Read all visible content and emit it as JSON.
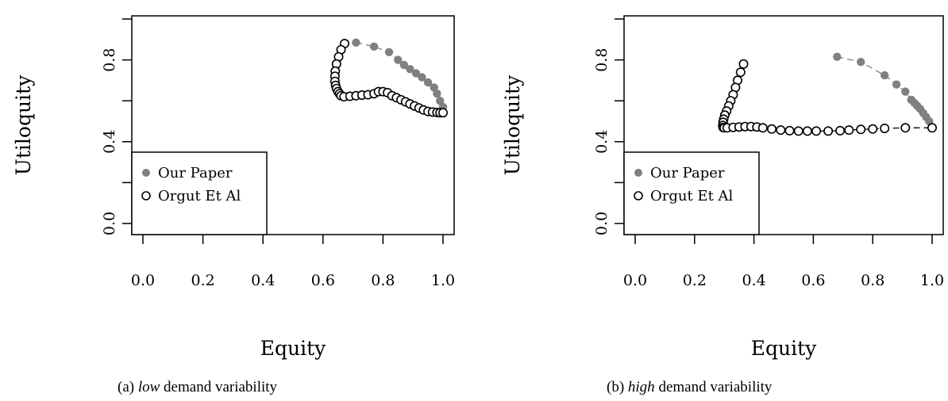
{
  "chart_data": [
    {
      "type": "scatter",
      "xlabel": "Equity",
      "ylabel": "Utiloquity",
      "xlim": [
        0,
        1
      ],
      "ylim": [
        0,
        1
      ],
      "x_ticks": [
        "0.0",
        "0.2",
        "0.4",
        "0.6",
        "0.8",
        "1.0"
      ],
      "y_ticks": [
        "0.0",
        "0.4",
        "0.8"
      ],
      "legend_placement": "bottom-left",
      "caption": {
        "prefix": "(a) ",
        "emphasis": "low",
        "suffix": " demand variability"
      },
      "series": [
        {
          "name": "Our Paper",
          "marker": "filled-circle",
          "color": "#808080",
          "connector": "dashed",
          "x": [
            0.71,
            0.77,
            0.82,
            0.85,
            0.87,
            0.89,
            0.91,
            0.93,
            0.95,
            0.97,
            0.98,
            0.99,
            1.0
          ],
          "y": [
            0.885,
            0.865,
            0.838,
            0.8,
            0.775,
            0.755,
            0.735,
            0.715,
            0.69,
            0.665,
            0.635,
            0.6,
            0.57
          ]
        },
        {
          "name": "Orgut Et Al",
          "marker": "open-circle",
          "color": "#000000",
          "connector": "dashed",
          "x": [
            0.672,
            0.66,
            0.652,
            0.645,
            0.641,
            0.64,
            0.64,
            0.642,
            0.645,
            0.65,
            0.655,
            0.66,
            0.67,
            0.69,
            0.71,
            0.73,
            0.75,
            0.77,
            0.785,
            0.8,
            0.815,
            0.83,
            0.845,
            0.86,
            0.875,
            0.89,
            0.905,
            0.92,
            0.935,
            0.95,
            0.965,
            0.98,
            0.99,
            1.0
          ],
          "y": [
            0.88,
            0.85,
            0.815,
            0.78,
            0.745,
            0.72,
            0.695,
            0.675,
            0.66,
            0.645,
            0.635,
            0.625,
            0.62,
            0.622,
            0.625,
            0.628,
            0.63,
            0.635,
            0.645,
            0.645,
            0.64,
            0.625,
            0.615,
            0.605,
            0.595,
            0.585,
            0.575,
            0.565,
            0.555,
            0.548,
            0.545,
            0.543,
            0.542,
            0.542
          ]
        }
      ]
    },
    {
      "type": "scatter",
      "xlabel": "Equity",
      "ylabel": "Utiloquity",
      "xlim": [
        0,
        1
      ],
      "ylim": [
        0,
        1
      ],
      "x_ticks": [
        "0.0",
        "0.2",
        "0.4",
        "0.6",
        "0.8",
        "1.0"
      ],
      "y_ticks": [
        "0.0",
        "0.4",
        "0.8"
      ],
      "legend_placement": "bottom-left",
      "caption": {
        "prefix": "(b) ",
        "emphasis": "high",
        "suffix": " demand variability"
      },
      "series": [
        {
          "name": "Our Paper",
          "marker": "filled-circle",
          "color": "#808080",
          "connector": "dashed",
          "x": [
            0.68,
            0.76,
            0.84,
            0.88,
            0.91,
            0.93,
            0.94,
            0.95,
            0.96,
            0.97,
            0.98,
            0.99,
            1.0
          ],
          "y": [
            0.815,
            0.79,
            0.725,
            0.68,
            0.645,
            0.605,
            0.59,
            0.575,
            0.56,
            0.54,
            0.52,
            0.5,
            0.47
          ]
        },
        {
          "name": "Orgut Et Al",
          "marker": "open-circle",
          "color": "#000000",
          "connector": "dashed",
          "x": [
            0.365,
            0.355,
            0.345,
            0.338,
            0.33,
            0.322,
            0.315,
            0.308,
            0.302,
            0.298,
            0.296,
            0.295,
            0.296,
            0.3,
            0.31,
            0.33,
            0.35,
            0.37,
            0.39,
            0.41,
            0.43,
            0.46,
            0.49,
            0.52,
            0.55,
            0.58,
            0.61,
            0.65,
            0.69,
            0.72,
            0.76,
            0.8,
            0.84,
            0.91,
            1.0
          ],
          "y": [
            0.78,
            0.74,
            0.7,
            0.665,
            0.63,
            0.6,
            0.575,
            0.55,
            0.53,
            0.51,
            0.495,
            0.48,
            0.47,
            0.468,
            0.468,
            0.47,
            0.472,
            0.474,
            0.474,
            0.472,
            0.468,
            0.462,
            0.457,
            0.454,
            0.452,
            0.452,
            0.452,
            0.452,
            0.454,
            0.457,
            0.46,
            0.462,
            0.465,
            0.468,
            0.468
          ]
        }
      ]
    }
  ]
}
